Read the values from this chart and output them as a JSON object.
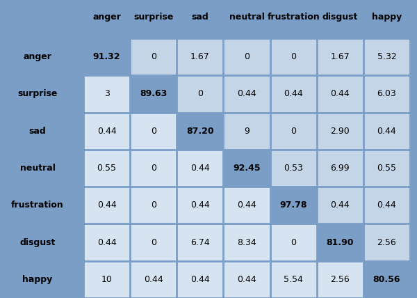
{
  "labels": [
    "anger",
    "surprise",
    "sad",
    "neutral",
    "frustration",
    "disgust",
    "happy"
  ],
  "matrix": [
    [
      91.32,
      0,
      1.67,
      0,
      0,
      1.67,
      5.32
    ],
    [
      3.0,
      89.63,
      0,
      0.44,
      0.44,
      0.44,
      6.03
    ],
    [
      0.44,
      0,
      87.2,
      9.0,
      0,
      2.9,
      0.44
    ],
    [
      0.55,
      0,
      0.44,
      92.45,
      0.53,
      6.99,
      0.55
    ],
    [
      0.44,
      0,
      0.44,
      0.44,
      97.78,
      0.44,
      0.44
    ],
    [
      0.44,
      0,
      6.74,
      8.34,
      0,
      81.9,
      2.56
    ],
    [
      10,
      0.44,
      0.44,
      0.44,
      5.54,
      2.56,
      80.56
    ]
  ],
  "cell_light": "#d6e3f0",
  "cell_diag": "#7b9ec7",
  "cell_above": "#c5d5e8",
  "outer_bg": "#7b9ec7",
  "fig_bg": "#7b9ec7",
  "grid_line_color": "#7b9ec7",
  "header_fontsize": 9,
  "cell_fontsize": 9,
  "row_label_fontsize": 9
}
